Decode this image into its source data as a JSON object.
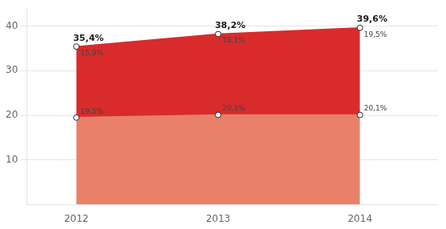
{
  "chart_data": {
    "type": "area",
    "stacked": true,
    "x": [
      2012,
      2013,
      2014
    ],
    "series": [
      {
        "color": "#E8806A",
        "values": [
          19.5,
          20.1,
          20.1
        ],
        "value_labels": [
          "19,5%",
          "20,1%",
          "20,1%"
        ]
      },
      {
        "color": "#D92B2B",
        "values": [
          15.9,
          18.1,
          19.5
        ],
        "value_labels": [
          "15,9%",
          "18,1%",
          "19,5%"
        ]
      }
    ],
    "totals": [
      35.4,
      38.2,
      39.6
    ],
    "total_labels": [
      "35,4%",
      "38,2%",
      "39,6%"
    ],
    "xlim": [
      2011.65,
      2014.55
    ],
    "xticks": [
      2012,
      2013,
      2014
    ],
    "ylim": [
      0,
      44
    ],
    "yticks": [
      10,
      20,
      30,
      40
    ],
    "grid": true,
    "data_labels": true,
    "marker": "circle"
  }
}
